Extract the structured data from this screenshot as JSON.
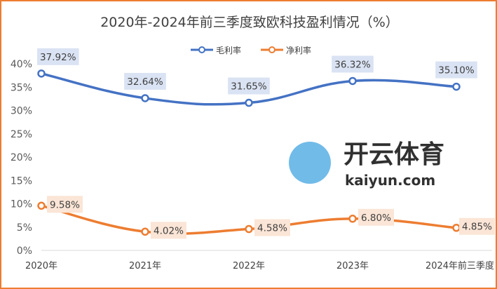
{
  "chart_data": {
    "type": "line",
    "title": "2020年-2024年前三季度致欧科技盈利情况（%）",
    "categories": [
      "2020年",
      "2021年",
      "2022年",
      "2023年",
      "2024年前三季度"
    ],
    "series": [
      {
        "name": "毛利率",
        "color": "#4472C4",
        "label_bg": "#DAE3F3",
        "values": [
          37.92,
          32.64,
          31.65,
          36.32,
          35.1
        ],
        "labels": [
          "37.92%",
          "32.64%",
          "31.65%",
          "36.32%",
          "35.10%"
        ]
      },
      {
        "name": "净利率",
        "color": "#ED7D31",
        "label_bg": "#FBE5D6",
        "values": [
          9.58,
          4.02,
          4.58,
          6.8,
          4.85
        ],
        "labels": [
          "9.58%",
          "4.02%",
          "4.58%",
          "6.80%",
          "4.85%"
        ]
      }
    ],
    "yticks": [
      "0%",
      "5%",
      "10%",
      "15%",
      "20%",
      "25%",
      "30%",
      "35%",
      "40%"
    ],
    "ylim": [
      0,
      40
    ],
    "xlabel": "",
    "ylabel": "",
    "legend": "top-center",
    "grid": false
  },
  "watermark": {
    "brand": "开云体育",
    "site": "kaiyun.com"
  }
}
